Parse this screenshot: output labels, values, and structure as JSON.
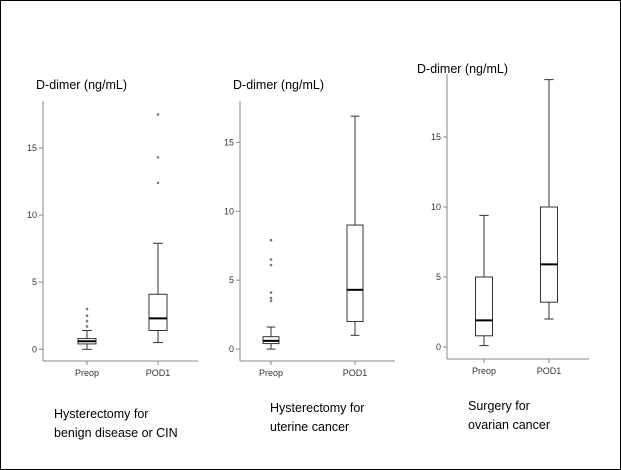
{
  "panels": [
    {
      "ylabel": "D-dimer (ng/mL)",
      "caption_lines": [
        "Hysterectomy  for",
        "benign disease or CIN"
      ]
    },
    {
      "ylabel": "D-dimer (ng/mL)",
      "caption_lines": [
        "Hysterectomy  for",
        "uterine cancer"
      ]
    },
    {
      "ylabel": "D-dimer (ng/mL)",
      "caption_lines": [
        "Surgery for",
        "ovarian  cancer"
      ]
    }
  ],
  "chart_data": [
    {
      "type": "box",
      "title": "",
      "ylabel": "D-dimer (ng/mL)",
      "categories": [
        "Preop",
        "POD1"
      ],
      "yticks": [
        0,
        5,
        10,
        15
      ],
      "ylim": [
        -0.5,
        18.5
      ],
      "grid": false,
      "boxes": [
        {
          "category": "Preop",
          "whisker_low": 0.0,
          "q1": 0.4,
          "median": 0.6,
          "q3": 0.8,
          "whisker_high": 1.4,
          "outliers": [
            1.7,
            2.1,
            2.5,
            3.0
          ]
        },
        {
          "category": "POD1",
          "whisker_low": 0.5,
          "q1": 1.4,
          "median": 2.3,
          "q3": 4.1,
          "whisker_high": 7.9,
          "outliers": [
            12.4,
            14.3,
            17.5
          ]
        }
      ]
    },
    {
      "type": "box",
      "title": "",
      "ylabel": "D-dimer (ng/mL)",
      "categories": [
        "Preop",
        "POD1"
      ],
      "yticks": [
        0,
        5,
        10,
        15
      ],
      "ylim": [
        -0.5,
        18.0
      ],
      "grid": false,
      "boxes": [
        {
          "category": "Preop",
          "whisker_low": 0.0,
          "q1": 0.4,
          "median": 0.6,
          "q3": 0.9,
          "whisker_high": 1.6,
          "outliers": [
            3.5,
            3.7,
            4.1,
            6.1,
            6.5,
            7.9
          ]
        },
        {
          "category": "POD1",
          "whisker_low": 1.0,
          "q1": 2.0,
          "median": 4.3,
          "q3": 9.0,
          "whisker_high": 16.9,
          "outliers": []
        }
      ]
    },
    {
      "type": "box",
      "title": "",
      "ylabel": "D-dimer (ng/mL)",
      "categories": [
        "Preop",
        "POD1"
      ],
      "yticks": [
        0,
        5,
        10,
        15
      ],
      "ylim": [
        -0.5,
        19.5
      ],
      "grid": false,
      "boxes": [
        {
          "category": "Preop",
          "whisker_low": 0.1,
          "q1": 0.8,
          "median": 1.9,
          "q3": 5.0,
          "whisker_high": 9.4,
          "outliers": []
        },
        {
          "category": "POD1",
          "whisker_low": 2.0,
          "q1": 3.2,
          "median": 5.9,
          "q3": 10.0,
          "whisker_high": 19.1,
          "outliers": []
        }
      ]
    }
  ]
}
